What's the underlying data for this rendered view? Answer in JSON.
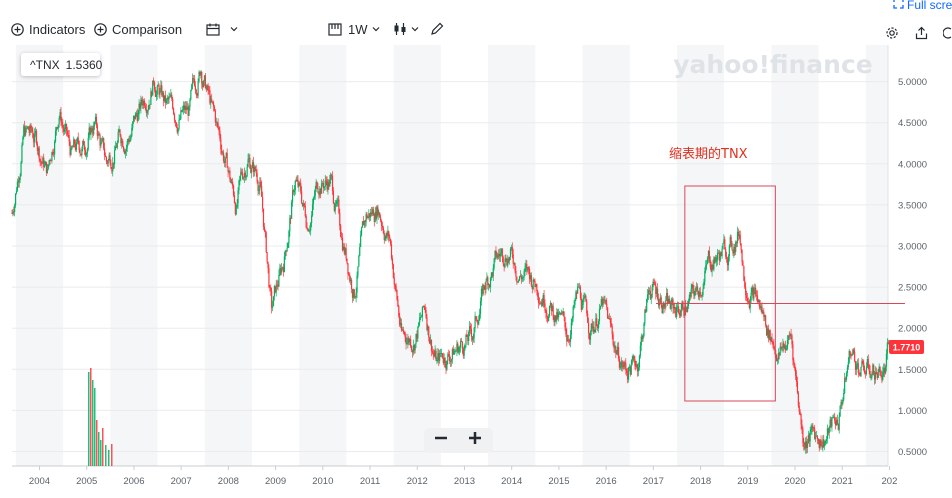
{
  "toolbar": {
    "indicators_label": "Indicators",
    "comparison_label": "Comparison",
    "interval_label": "1W",
    "fullscreen_label": "Full scre"
  },
  "ticker": {
    "symbol": "^TNX",
    "value": "1.5360",
    "accent": "#0f69ff"
  },
  "watermark": "yahoo!finance",
  "annotation": {
    "text": "缩表期的TNX",
    "color": "#e0301e"
  },
  "price_label": {
    "value": "1.7710",
    "color": "#ff333a"
  },
  "colors": {
    "up": "#00b061",
    "down": "#ff333a",
    "band": "#f5f6f7",
    "grid": "#e9ebee"
  },
  "chart_data": {
    "type": "candlestick",
    "x_tick_labels": [
      "2004",
      "2005",
      "2006",
      "2007",
      "2008",
      "2009",
      "2010",
      "2011",
      "2012",
      "2013",
      "2014",
      "2015",
      "2016",
      "2017",
      "2018",
      "2019",
      "2020",
      "2021",
      "202"
    ],
    "y_tick_labels": [
      "5.0000",
      "4.5000",
      "4.0000",
      "3.5000",
      "3.0000",
      "2.5000",
      "2.0000",
      "1.5000",
      "1.0000",
      "0.5000"
    ],
    "ylim": [
      0.4,
      5.3
    ],
    "last_value": 1.771,
    "reference_line": 2.3,
    "highlight_period": [
      "2017-09",
      "2019-08"
    ],
    "series": [
      {
        "values": [
          [
            "2003-06",
            3.4
          ],
          [
            "2003-09",
            4.4
          ],
          [
            "2003-12",
            4.3
          ],
          [
            "2004-03",
            3.9
          ],
          [
            "2004-06",
            4.7
          ],
          [
            "2004-09",
            4.1
          ],
          [
            "2004-12",
            4.2
          ],
          [
            "2005-03",
            4.5
          ],
          [
            "2005-06",
            4.0
          ],
          [
            "2005-09",
            4.3
          ],
          [
            "2005-12",
            4.4
          ],
          [
            "2006-03",
            4.7
          ],
          [
            "2006-06",
            5.1
          ],
          [
            "2006-09",
            4.7
          ],
          [
            "2006-12",
            4.6
          ],
          [
            "2007-03",
            4.6
          ],
          [
            "2007-06",
            5.2
          ],
          [
            "2007-09",
            4.6
          ],
          [
            "2007-12",
            4.1
          ],
          [
            "2008-03",
            3.5
          ],
          [
            "2008-06",
            4.1
          ],
          [
            "2008-09",
            3.8
          ],
          [
            "2008-12",
            2.2
          ],
          [
            "2009-03",
            2.8
          ],
          [
            "2009-06",
            3.8
          ],
          [
            "2009-09",
            3.3
          ],
          [
            "2009-12",
            3.8
          ],
          [
            "2010-03",
            3.8
          ],
          [
            "2010-06",
            3.1
          ],
          [
            "2010-09",
            2.5
          ],
          [
            "2010-12",
            3.3
          ],
          [
            "2011-03",
            3.5
          ],
          [
            "2011-06",
            3.1
          ],
          [
            "2011-09",
            1.9
          ],
          [
            "2011-12",
            1.9
          ],
          [
            "2012-03",
            2.2
          ],
          [
            "2012-06",
            1.6
          ],
          [
            "2012-09",
            1.7
          ],
          [
            "2012-12",
            1.8
          ],
          [
            "2013-03",
            1.9
          ],
          [
            "2013-06",
            2.5
          ],
          [
            "2013-09",
            2.8
          ],
          [
            "2013-12",
            3.0
          ],
          [
            "2014-03",
            2.7
          ],
          [
            "2014-06",
            2.6
          ],
          [
            "2014-09",
            2.5
          ],
          [
            "2014-12",
            2.2
          ],
          [
            "2015-03",
            1.9
          ],
          [
            "2015-06",
            2.4
          ],
          [
            "2015-09",
            2.0
          ],
          [
            "2015-12",
            2.3
          ],
          [
            "2016-03",
            1.8
          ],
          [
            "2016-06",
            1.5
          ],
          [
            "2016-09",
            1.6
          ],
          [
            "2016-12",
            2.5
          ],
          [
            "2017-03",
            2.4
          ],
          [
            "2017-06",
            2.2
          ],
          [
            "2017-09",
            2.3
          ],
          [
            "2017-12",
            2.4
          ],
          [
            "2018-03",
            2.8
          ],
          [
            "2018-06",
            2.9
          ],
          [
            "2018-09",
            3.0
          ],
          [
            "2018-11",
            3.2
          ],
          [
            "2018-12",
            2.7
          ],
          [
            "2019-03",
            2.4
          ],
          [
            "2019-06",
            2.0
          ],
          [
            "2019-09",
            1.7
          ],
          [
            "2019-12",
            1.9
          ],
          [
            "2020-03",
            0.7
          ],
          [
            "2020-06",
            0.7
          ],
          [
            "2020-09",
            0.7
          ],
          [
            "2020-12",
            0.9
          ],
          [
            "2021-03",
            1.7
          ],
          [
            "2021-06",
            1.5
          ],
          [
            "2021-09",
            1.5
          ],
          [
            "2021-12",
            1.5
          ],
          [
            "2022-01",
            1.77
          ]
        ]
      }
    ]
  }
}
